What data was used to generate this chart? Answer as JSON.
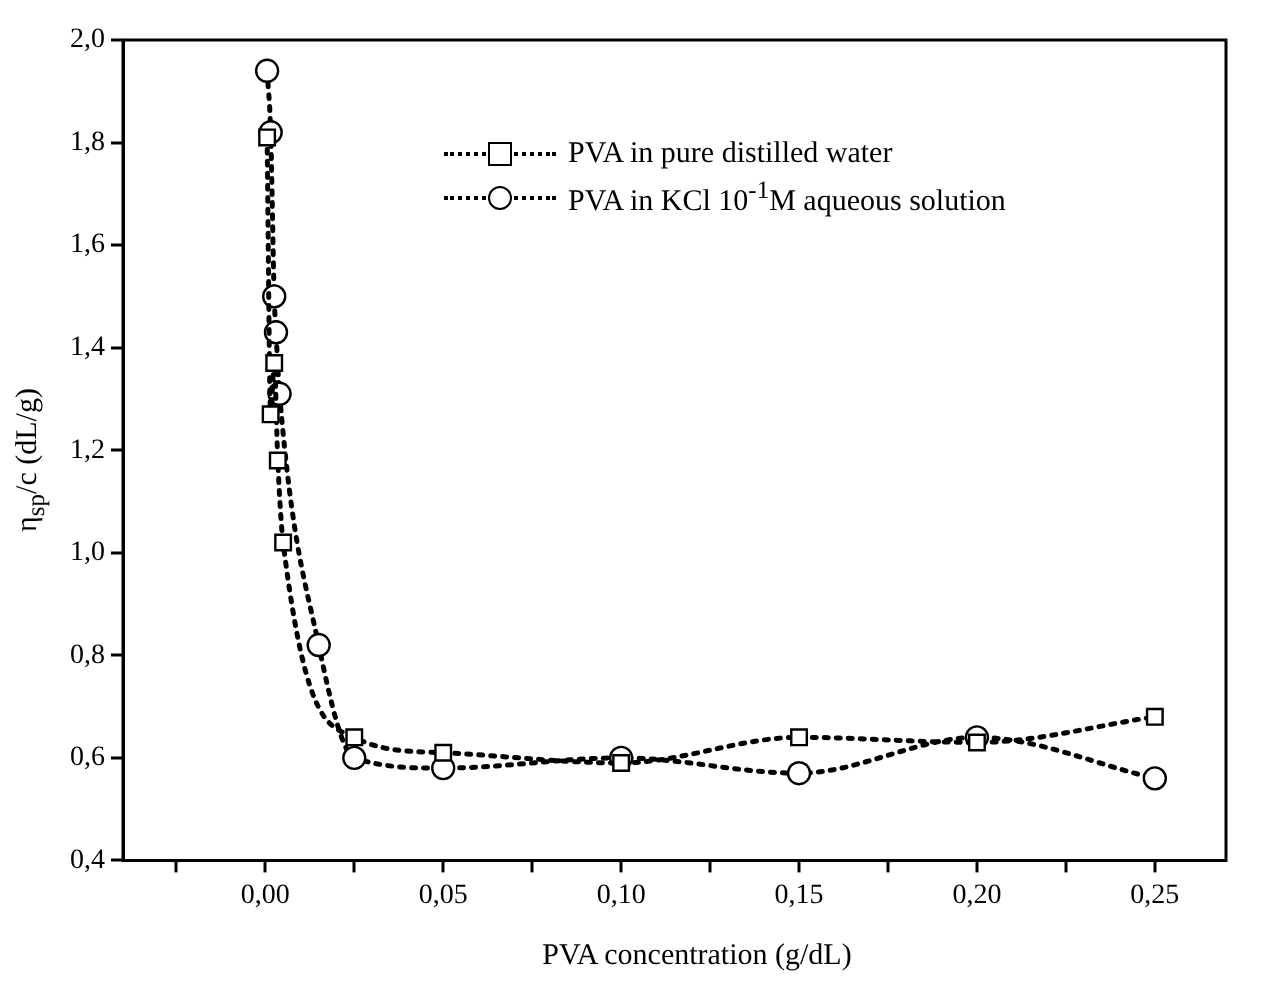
{
  "chart_data": {
    "type": "line",
    "xlabel": "PVA concentration (g/dL)",
    "ylabel": "η$_{sp}$/c (dL/g)",
    "xlim": [
      -0.04,
      0.27
    ],
    "xticks": [
      {
        "value": -0.025,
        "label": null
      },
      {
        "value": 0,
        "label": "0,00"
      },
      {
        "value": 0.025,
        "label": null
      },
      {
        "value": 0.05,
        "label": "0,05"
      },
      {
        "value": 0.075,
        "label": null
      },
      {
        "value": 0.1,
        "label": "0,10"
      },
      {
        "value": 0.125,
        "label": null
      },
      {
        "value": 0.15,
        "label": "0,15"
      },
      {
        "value": 0.175,
        "label": null
      },
      {
        "value": 0.2,
        "label": "0,20"
      },
      {
        "value": 0.225,
        "label": null
      },
      {
        "value": 0.25,
        "label": "0,25"
      }
    ],
    "ylim": [
      0.4,
      2.0
    ],
    "yticks": [
      {
        "value": 0.4,
        "label": "0,4"
      },
      {
        "value": 0.6,
        "label": "0,6"
      },
      {
        "value": 0.8,
        "label": "0,8"
      },
      {
        "value": 1.0,
        "label": "1,0"
      },
      {
        "value": 1.2,
        "label": "1,2"
      },
      {
        "value": 1.4,
        "label": "1,4"
      },
      {
        "value": 1.6,
        "label": "1,6"
      },
      {
        "value": 1.8,
        "label": "1,8"
      },
      {
        "value": 2.0,
        "label": "2,0"
      }
    ],
    "grid": false,
    "legend": "top right",
    "line_style": "dotted",
    "series": [
      {
        "name": "PVA in pure distilled water",
        "color": "#000000",
        "marker": "square",
        "x": [
          0.0005,
          0.0015,
          0.0025,
          0.0035,
          0.005,
          0.025,
          0.05,
          0.1,
          0.15,
          0.2,
          0.25
        ],
        "values": [
          1.81,
          1.27,
          1.37,
          1.18,
          1.02,
          0.64,
          0.61,
          0.59,
          0.64,
          0.63,
          0.68
        ]
      },
      {
        "name": "PVA in KCl 10$^{-1}$M aqueous solution",
        "color": "#000000",
        "marker": "circle",
        "x": [
          0.0005,
          0.0015,
          0.0025,
          0.003,
          0.004,
          0.015,
          0.025,
          0.05,
          0.1,
          0.15,
          0.2,
          0.25
        ],
        "values": [
          1.94,
          1.82,
          1.5,
          1.43,
          1.31,
          0.82,
          0.6,
          0.58,
          0.6,
          0.57,
          0.64,
          0.56
        ]
      }
    ]
  }
}
